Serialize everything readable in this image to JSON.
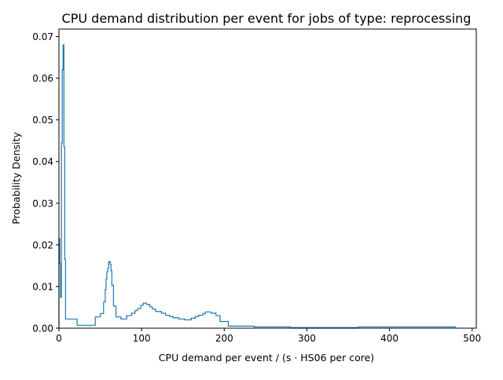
{
  "chart_data": {
    "type": "step",
    "title": "CPU demand distribution per event for jobs of type: reprocessing",
    "xlabel": "CPU demand per event / (s · HS06 per core)",
    "ylabel": "Probability Density",
    "xlim": [
      0,
      505
    ],
    "ylim": [
      0,
      0.0718
    ],
    "xticks": [
      0,
      100,
      200,
      300,
      400,
      500
    ],
    "xtick_labels": [
      "0",
      "100",
      "200",
      "300",
      "400",
      "500"
    ],
    "yticks": [
      0.0,
      0.01,
      0.02,
      0.03,
      0.04,
      0.05,
      0.06,
      0.07
    ],
    "ytick_labels": [
      "0.00",
      "0.01",
      "0.02",
      "0.03",
      "0.04",
      "0.05",
      "0.06",
      "0.07"
    ],
    "grid": false,
    "series": [
      {
        "color": "#1f77b4",
        "steps": [
          [
            0,
            0.0215
          ],
          [
            1,
            0.0155
          ],
          [
            2,
            0.0074
          ],
          [
            3,
            0.0445
          ],
          [
            4,
            0.062
          ],
          [
            5,
            0.068
          ],
          [
            6,
            0.0435
          ],
          [
            7,
            0.0165
          ],
          [
            8,
            0.0022
          ],
          [
            22,
            0.0007
          ],
          [
            44,
            0.0027
          ],
          [
            50,
            0.0035
          ],
          [
            54,
            0.0063
          ],
          [
            56,
            0.0093
          ],
          [
            57,
            0.0118
          ],
          [
            58,
            0.0135
          ],
          [
            59,
            0.0143
          ],
          [
            60,
            0.0158
          ],
          [
            61,
            0.016
          ],
          [
            62,
            0.0153
          ],
          [
            63,
            0.0138
          ],
          [
            64,
            0.0103
          ],
          [
            66,
            0.0053
          ],
          [
            69,
            0.0027
          ],
          [
            75,
            0.0022
          ],
          [
            82,
            0.003
          ],
          [
            88,
            0.0036
          ],
          [
            92,
            0.0042
          ],
          [
            95,
            0.0047
          ],
          [
            99,
            0.0055
          ],
          [
            102,
            0.006
          ],
          [
            106,
            0.0057
          ],
          [
            110,
            0.0051
          ],
          [
            113,
            0.0046
          ],
          [
            117,
            0.004
          ],
          [
            124,
            0.0036
          ],
          [
            129,
            0.0031
          ],
          [
            134,
            0.0028
          ],
          [
            138,
            0.0025
          ],
          [
            145,
            0.0022
          ],
          [
            152,
            0.002
          ],
          [
            160,
            0.0024
          ],
          [
            165,
            0.0028
          ],
          [
            169,
            0.0031
          ],
          [
            174,
            0.0035
          ],
          [
            177,
            0.0039
          ],
          [
            184,
            0.0036
          ],
          [
            190,
            0.003
          ],
          [
            195,
            0.0016
          ],
          [
            205,
            0.0005
          ],
          [
            236,
            0.0003
          ],
          [
            280,
            0.00015
          ],
          [
            362,
            0.0003
          ],
          [
            480,
            0
          ]
        ]
      }
    ]
  }
}
